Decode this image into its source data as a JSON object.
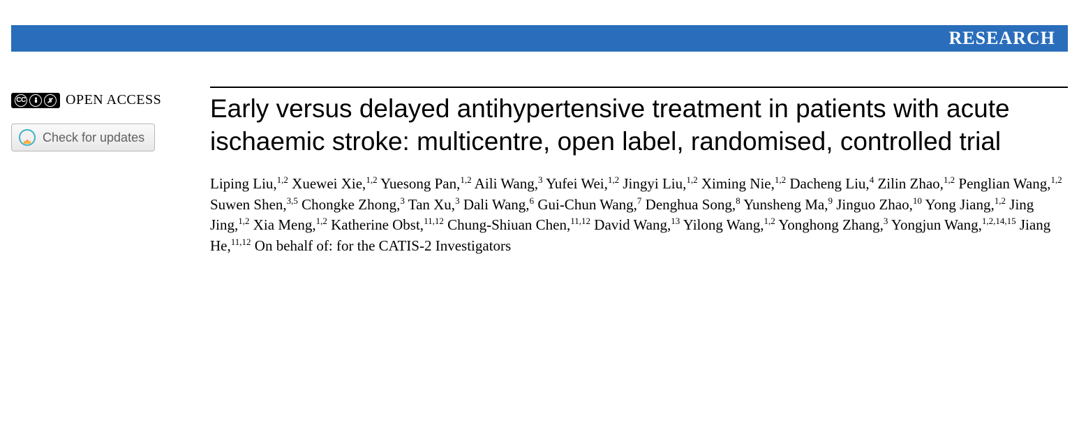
{
  "banner": {
    "label": "RESEARCH",
    "bg_color": "#2a6ebb",
    "text_color": "#ffffff"
  },
  "left": {
    "open_access_label": "OPEN ACCESS",
    "cc_text": "CC",
    "by_text": "BY",
    "nc_text": "NC",
    "updates_label": "Check for updates"
  },
  "article": {
    "title": "Early versus delayed antihypertensive treatment in patients with acute ischaemic stroke: multicentre, open label, randomised, controlled trial",
    "authors": [
      {
        "name": "Liping Liu",
        "aff": "1,2"
      },
      {
        "name": "Xuewei Xie",
        "aff": "1,2"
      },
      {
        "name": "Yuesong Pan",
        "aff": "1,2"
      },
      {
        "name": "Aili Wang",
        "aff": "3"
      },
      {
        "name": "Yufei Wei",
        "aff": "1,2"
      },
      {
        "name": "Jingyi Liu",
        "aff": "1,2"
      },
      {
        "name": "Ximing Nie",
        "aff": "1,2"
      },
      {
        "name": "Dacheng Liu",
        "aff": "4"
      },
      {
        "name": "Zilin Zhao",
        "aff": "1,2"
      },
      {
        "name": "Penglian Wang",
        "aff": "1,2"
      },
      {
        "name": "Suwen Shen",
        "aff": "3,5"
      },
      {
        "name": "Chongke Zhong",
        "aff": "3"
      },
      {
        "name": "Tan Xu",
        "aff": "3"
      },
      {
        "name": "Dali Wang",
        "aff": "6"
      },
      {
        "name": "Gui-Chun Wang",
        "aff": "7"
      },
      {
        "name": "Denghua Song",
        "aff": "8"
      },
      {
        "name": "Yunsheng Ma",
        "aff": "9"
      },
      {
        "name": "Jinguo Zhao",
        "aff": "10"
      },
      {
        "name": "Yong Jiang",
        "aff": "1,2"
      },
      {
        "name": "Jing Jing",
        "aff": "1,2"
      },
      {
        "name": "Xia Meng",
        "aff": "1,2"
      },
      {
        "name": "Katherine Obst",
        "aff": "11,12"
      },
      {
        "name": "Chung-Shiuan Chen",
        "aff": "11,12"
      },
      {
        "name": "David Wang",
        "aff": "13"
      },
      {
        "name": "Yilong Wang",
        "aff": "1,2"
      },
      {
        "name": "Yonghong Zhang",
        "aff": "3"
      },
      {
        "name": "Yongjun Wang",
        "aff": "1,2,14,15"
      },
      {
        "name": "Jiang He",
        "aff": "11,12"
      }
    ],
    "behalf": "On behalf of: for the CATIS-2 Investigators"
  },
  "style": {
    "title_fontsize": 37,
    "author_fontsize": 21,
    "banner_fontsize": 26,
    "rule_color": "#000000",
    "background": "#ffffff",
    "button_border": "#b7b7b7",
    "button_text_color": "#616161"
  }
}
